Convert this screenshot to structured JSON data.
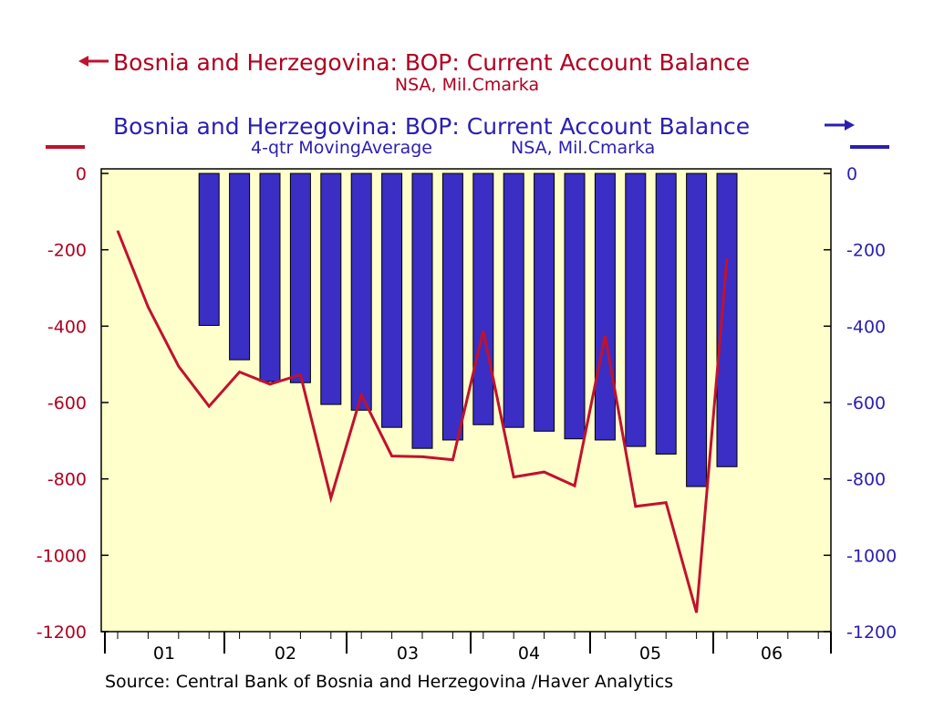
{
  "header": {
    "series1_title": "Bosnia and Herzegovina: BOP: Current Account Balance",
    "series1_sub": "NSA, Mil.Cmarka",
    "series2_title": "Bosnia and Herzegovina: BOP: Current Account Balance",
    "series2_sub_a": "4-qtr MovingAverage",
    "series2_sub_b": "NSA, Mil.Cmarka"
  },
  "footer": {
    "source": "Source:  Central Bank of Bosnia and Herzegovina /Haver Analytics"
  },
  "colors": {
    "background": "#ffffff",
    "plot_bg": "#ffffcc",
    "line": "#c0122e",
    "bar_fill": "#3a2ec4",
    "bar_stroke": "#000000",
    "left_axis_text": "#b00020",
    "right_axis_text": "#2a1fb0"
  },
  "chart_data": {
    "type": "bar+line",
    "x_tick_labels": [
      "01",
      "02",
      "03",
      "04",
      "05",
      "06"
    ],
    "left_axis": {
      "ticks": [
        0,
        -200,
        -400,
        -600,
        -800,
        -1000,
        -1200
      ],
      "ylim": [
        -1200,
        0
      ],
      "series": "line"
    },
    "right_axis": {
      "ticks": [
        0,
        -200,
        -400,
        -600,
        -800,
        -1000,
        -1200
      ],
      "ylim": [
        -1200,
        0
      ],
      "series": "bars"
    },
    "quarters": [
      "2001Q1",
      "2001Q2",
      "2001Q3",
      "2001Q4",
      "2002Q1",
      "2002Q2",
      "2002Q3",
      "2002Q4",
      "2003Q1",
      "2003Q2",
      "2003Q3",
      "2003Q4",
      "2004Q1",
      "2004Q2",
      "2004Q3",
      "2004Q4",
      "2005Q1",
      "2005Q2",
      "2005Q3",
      "2005Q4",
      "2006Q1",
      "2006Q2",
      "2006Q3",
      "2006Q4"
    ],
    "series": [
      {
        "name": "Bosnia and Herzegovina: BOP: Current Account Balance",
        "kind": "line",
        "axis": "left",
        "values": [
          -150,
          -350,
          -505,
          -610,
          -520,
          -552,
          -527,
          -850,
          -580,
          -740,
          -742,
          -750,
          -412,
          -795,
          -782,
          -818,
          -425,
          -872,
          -862,
          -1150,
          -222
        ]
      },
      {
        "name": "Bosnia and Herzegovina: BOP: Current Account Balance",
        "kind": "bar",
        "axis": "right",
        "start_index": 3,
        "values": [
          -398,
          -488,
          -545,
          -548,
          -605,
          -620,
          -665,
          -720,
          -698,
          -658,
          -665,
          -675,
          -695,
          -698,
          -715,
          -735,
          -820,
          -768
        ]
      }
    ],
    "grid": false,
    "legend": "top"
  }
}
